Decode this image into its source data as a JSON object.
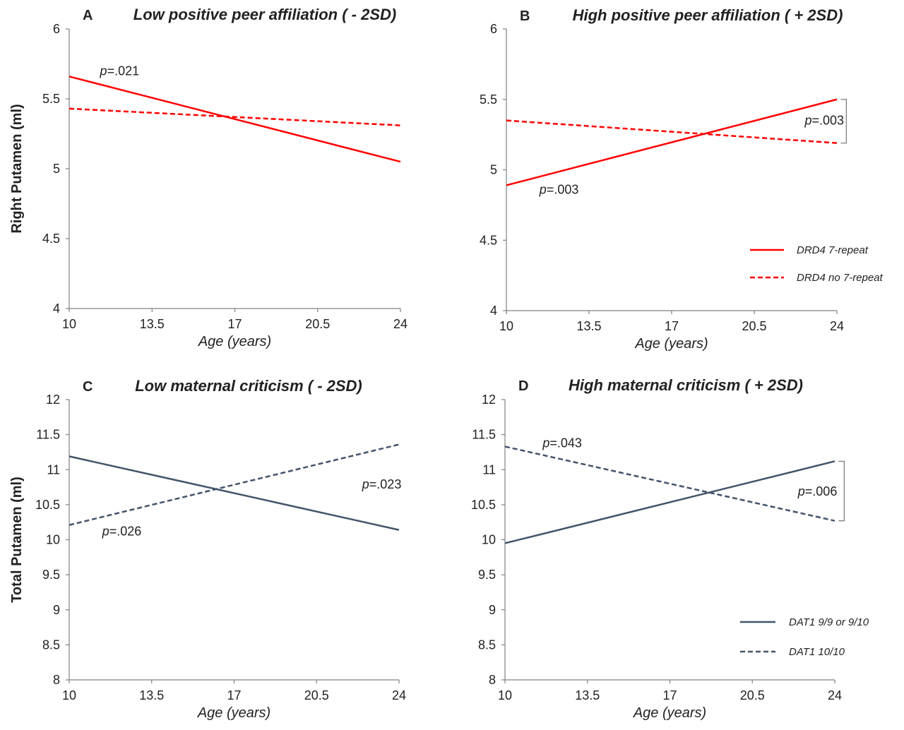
{
  "chart_data": [
    {
      "type": "line",
      "panel_letter": "A",
      "title": "Low positive peer affiliation ( - 2SD)",
      "xlabel": "Age (years)",
      "ylabel": "Right Putamen (ml)",
      "x_ticks": [
        "10",
        "13.5",
        "17",
        "20.5",
        "24"
      ],
      "y_ticks": [
        "4",
        "4.5",
        "5",
        "5.5",
        "6"
      ],
      "xlim": [
        10,
        24
      ],
      "ylim": [
        4,
        6
      ],
      "series": [
        {
          "key": "seven",
          "x": [
            10,
            24
          ],
          "y": [
            5.66,
            5.05
          ],
          "color": "#ff0000",
          "dashed": false
        },
        {
          "key": "noseven",
          "x": [
            10,
            24
          ],
          "y": [
            5.43,
            5.31
          ],
          "color": "#ff0000",
          "dashed": true
        }
      ],
      "annotations": [
        {
          "label": "p",
          "value": "=.021",
          "x": 11.3,
          "y": 5.67,
          "anchor": "start"
        }
      ],
      "bracket": null
    },
    {
      "type": "line",
      "panel_letter": "B",
      "title": "High positive peer affiliation ( + 2SD)",
      "xlabel": "Age (years)",
      "ylabel": "",
      "x_ticks": [
        "10",
        "13.5",
        "17",
        "20.5",
        "24"
      ],
      "y_ticks": [
        "4",
        "4.5",
        "5",
        "5.5",
        "6"
      ],
      "xlim": [
        10,
        24
      ],
      "ylim": [
        4,
        6
      ],
      "series": [
        {
          "key": "seven",
          "name": "DRD4 7-repeat",
          "x": [
            10,
            24
          ],
          "y": [
            4.89,
            5.5
          ],
          "color": "#ff0000",
          "dashed": false
        },
        {
          "key": "noseven",
          "name": "DRD4 no 7-repeat",
          "x": [
            10,
            24
          ],
          "y": [
            5.35,
            5.19
          ],
          "color": "#ff0000",
          "dashed": true
        }
      ],
      "annotations": [
        {
          "label": "p",
          "value": "=.003",
          "x": 11.4,
          "y": 4.83,
          "anchor": "start"
        },
        {
          "label": "p",
          "value": "=.003",
          "x": 24.3,
          "y": 5.32,
          "anchor": "end"
        }
      ],
      "bracket": {
        "x": 24.4,
        "y": [
          5.19,
          5.5
        ]
      },
      "legend": "bottom-right"
    },
    {
      "type": "line",
      "panel_letter": "C",
      "title": "Low maternal criticism ( - 2SD)",
      "xlabel": "Age (years)",
      "ylabel": "Total Putamen (ml)",
      "x_ticks": [
        "10",
        "13.5",
        "17",
        "20.5",
        "24"
      ],
      "y_ticks": [
        "8",
        "8.5",
        "9",
        "9.5",
        "10",
        "10.5",
        "11",
        "11.5",
        "12"
      ],
      "xlim": [
        10,
        24
      ],
      "ylim": [
        8,
        12
      ],
      "series": [
        {
          "key": "dat_short",
          "x": [
            10,
            24
          ],
          "y": [
            11.19,
            10.14
          ],
          "color": "#44546a",
          "dashed": false
        },
        {
          "key": "dat_long",
          "x": [
            10,
            24
          ],
          "y": [
            10.21,
            11.36
          ],
          "color": "#44546a",
          "dashed": true
        }
      ],
      "annotations": [
        {
          "label": "p",
          "value": "=.026",
          "x": 11.4,
          "y": 10.06,
          "anchor": "start"
        },
        {
          "label": "p",
          "value": "=.023",
          "x": 24.1,
          "y": 10.73,
          "anchor": "end"
        }
      ],
      "bracket": null
    },
    {
      "type": "line",
      "panel_letter": "D",
      "title": "High maternal criticism ( + 2SD)",
      "xlabel": "Age (years)",
      "ylabel": "",
      "x_ticks": [
        "10",
        "13.5",
        "17",
        "20.5",
        "24"
      ],
      "y_ticks": [
        "8",
        "8.5",
        "9",
        "9.5",
        "10",
        "10.5",
        "11",
        "11.5",
        "12"
      ],
      "xlim": [
        10,
        24
      ],
      "ylim": [
        8,
        12
      ],
      "series": [
        {
          "key": "dat_short",
          "name": "DAT1 9/9 or 9/10",
          "x": [
            10,
            24
          ],
          "y": [
            9.95,
            11.12
          ],
          "color": "#44546a",
          "dashed": false
        },
        {
          "key": "dat_long",
          "name": "DAT1 10/10",
          "x": [
            10,
            24
          ],
          "y": [
            11.33,
            10.27
          ],
          "color": "#44546a",
          "dashed": true
        }
      ],
      "annotations": [
        {
          "label": "p",
          "value": "=.043",
          "x": 11.6,
          "y": 11.32,
          "anchor": "start"
        },
        {
          "label": "p",
          "value": "=.006",
          "x": 24.1,
          "y": 10.63,
          "anchor": "end"
        }
      ],
      "bracket": {
        "x": 24.4,
        "y": [
          10.27,
          11.12
        ]
      },
      "legend": "bottom-right"
    }
  ]
}
